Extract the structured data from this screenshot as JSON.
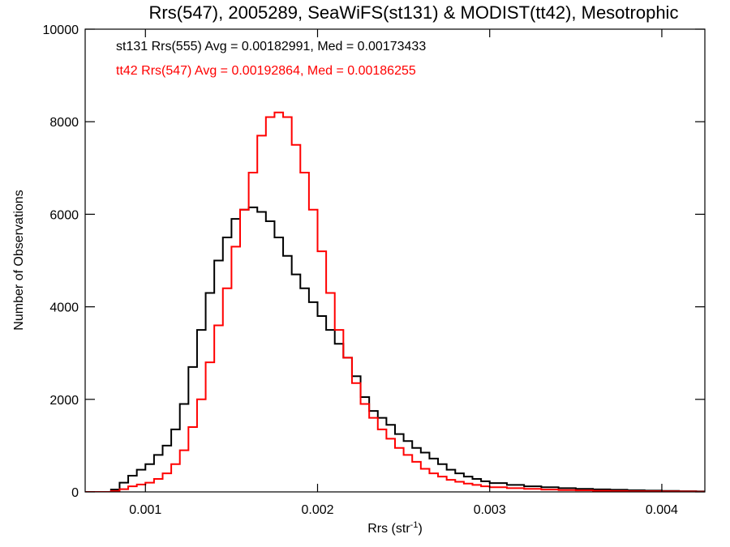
{
  "chart_data": {
    "type": "line",
    "title": "Rrs(547), 2005289, SeaWiFS(st131) & MODIST(tt42), Mesotrophic",
    "xlabel": "Rrs (str",
    "xlabel_sup": "-1",
    "xlabel_close": ")",
    "ylabel": "Number of Observations",
    "xlim": [
      0.00065,
      0.00425
    ],
    "ylim": [
      0,
      10000
    ],
    "xticks": [
      {
        "value": 0.001,
        "label": "0.001"
      },
      {
        "value": 0.002,
        "label": "0.002"
      },
      {
        "value": 0.003,
        "label": "0.003"
      },
      {
        "value": 0.004,
        "label": "0.004"
      }
    ],
    "yticks": [
      {
        "value": 0,
        "label": "0"
      },
      {
        "value": 2000,
        "label": "2000"
      },
      {
        "value": 4000,
        "label": "4000"
      },
      {
        "value": 6000,
        "label": "6000"
      },
      {
        "value": 8000,
        "label": "8000"
      },
      {
        "value": 10000,
        "label": "10000"
      }
    ],
    "grid": false,
    "series": [
      {
        "name": "st131 Rrs(555) Avg = 0.00182991, Med = 0.00173433",
        "color": "#000000",
        "x": [
          0.00065,
          0.0007,
          0.00075,
          0.0008,
          0.00085,
          0.0009,
          0.00095,
          0.001,
          0.00105,
          0.0011,
          0.00115,
          0.0012,
          0.00125,
          0.0013,
          0.00135,
          0.0014,
          0.00145,
          0.0015,
          0.00155,
          0.0016,
          0.00165,
          0.0017,
          0.00175,
          0.0018,
          0.00185,
          0.0019,
          0.00195,
          0.002,
          0.00205,
          0.0021,
          0.00215,
          0.0022,
          0.00225,
          0.0023,
          0.00235,
          0.0024,
          0.00245,
          0.0025,
          0.00255,
          0.0026,
          0.00265,
          0.0027,
          0.00275,
          0.0028,
          0.00285,
          0.0029,
          0.00295,
          0.003,
          0.0031,
          0.0032,
          0.0033,
          0.0034,
          0.0035,
          0.0036,
          0.0037,
          0.0038,
          0.0039,
          0.004,
          0.0041,
          0.0042,
          0.00425
        ],
        "values": [
          0,
          0,
          0,
          50,
          200,
          350,
          480,
          600,
          800,
          1000,
          1350,
          1900,
          2700,
          3500,
          4300,
          5000,
          5500,
          5900,
          6100,
          6150,
          6050,
          5850,
          5500,
          5100,
          4700,
          4400,
          4100,
          3800,
          3500,
          3200,
          2900,
          2500,
          2050,
          1750,
          1600,
          1450,
          1250,
          1100,
          950,
          850,
          720,
          600,
          480,
          400,
          330,
          280,
          230,
          190,
          150,
          120,
          100,
          80,
          65,
          55,
          45,
          35,
          28,
          22,
          15,
          10,
          8
        ]
      },
      {
        "name": "tt42 Rrs(547) Avg = 0.00192864, Med = 0.00186255",
        "color": "#ff0000",
        "x": [
          0.00065,
          0.0007,
          0.00075,
          0.0008,
          0.00085,
          0.0009,
          0.00095,
          0.001,
          0.00105,
          0.0011,
          0.00115,
          0.0012,
          0.00125,
          0.0013,
          0.00135,
          0.0014,
          0.00145,
          0.0015,
          0.00155,
          0.0016,
          0.00165,
          0.0017,
          0.00175,
          0.0018,
          0.00185,
          0.0019,
          0.00195,
          0.002,
          0.00205,
          0.0021,
          0.00215,
          0.0022,
          0.00225,
          0.0023,
          0.00235,
          0.0024,
          0.00245,
          0.0025,
          0.00255,
          0.0026,
          0.00265,
          0.0027,
          0.00275,
          0.0028,
          0.00285,
          0.0029,
          0.00295,
          0.003,
          0.0031,
          0.0032,
          0.0033,
          0.0034,
          0.0035,
          0.0036,
          0.0037,
          0.0038,
          0.0039,
          0.004,
          0.0041,
          0.0042,
          0.00425
        ],
        "values": [
          0,
          0,
          0,
          20,
          60,
          120,
          160,
          200,
          280,
          400,
          600,
          900,
          1400,
          2000,
          2800,
          3600,
          4400,
          5300,
          6100,
          6900,
          7700,
          8100,
          8200,
          8100,
          7500,
          6900,
          6100,
          5200,
          4300,
          3500,
          2900,
          2350,
          1900,
          1600,
          1350,
          1150,
          950,
          800,
          650,
          500,
          400,
          330,
          260,
          220,
          180,
          150,
          120,
          100,
          80,
          65,
          50,
          40,
          32,
          25,
          20,
          15,
          12,
          10,
          8,
          5,
          4
        ]
      }
    ]
  }
}
